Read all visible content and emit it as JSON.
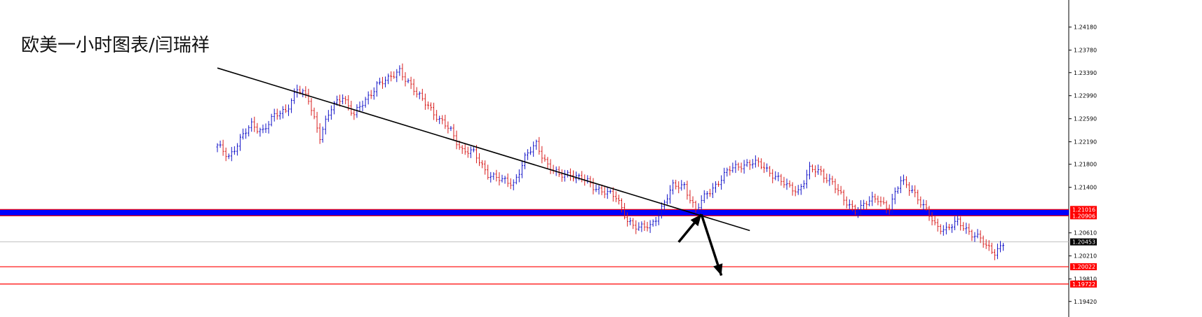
{
  "chart_data": {
    "type": "candlestick",
    "title": "欧美一小时图表/闫瑞祥",
    "ylim": [
      1.1915,
      1.2465
    ],
    "y_ticks": [
      "1.24180",
      "1.23780",
      "1.23390",
      "1.22990",
      "1.22590",
      "1.22190",
      "1.21800",
      "1.21400",
      "1.20610",
      "1.20210",
      "1.19810",
      "1.19420"
    ],
    "current_price": "1.20453",
    "levels": [
      {
        "label": "1.21016",
        "value": 1.21016,
        "color": "#ff0000"
      },
      {
        "label": "1.20906",
        "value": 1.20906,
        "color": "#ff0000"
      },
      {
        "label": "1.20022",
        "value": 1.20022,
        "color": "#ff0000"
      },
      {
        "label": "1.19722",
        "value": 1.19722,
        "color": "#ff0000"
      }
    ],
    "support_band": {
      "from": 1.20906,
      "to": 1.21016,
      "color": "#0000ff"
    },
    "trendline": {
      "points": [
        [
          0,
          1.2347
        ],
        [
          187,
          1.2065
        ]
      ],
      "color": "#000000"
    },
    "forecast_arrows": [
      {
        "from": [
          162,
          1.2045
        ],
        "to": [
          170,
          1.2093
        ]
      },
      {
        "from": [
          170,
          1.2093
        ],
        "to": [
          177,
          1.1987
        ]
      }
    ],
    "path": [
      [
        0,
        1.221
      ],
      [
        4,
        1.2195
      ],
      [
        8,
        1.2222
      ],
      [
        12,
        1.2248
      ],
      [
        16,
        1.224
      ],
      [
        20,
        1.2262
      ],
      [
        24,
        1.2275
      ],
      [
        28,
        1.231
      ],
      [
        32,
        1.2292
      ],
      [
        36,
        1.223
      ],
      [
        40,
        1.2275
      ],
      [
        44,
        1.23
      ],
      [
        48,
        1.2265
      ],
      [
        52,
        1.229
      ],
      [
        56,
        1.232
      ],
      [
        60,
        1.2325
      ],
      [
        64,
        1.2345
      ],
      [
        66,
        1.233
      ],
      [
        70,
        1.23
      ],
      [
        74,
        1.2285
      ],
      [
        78,
        1.2255
      ],
      [
        82,
        1.2238
      ],
      [
        86,
        1.2205
      ],
      [
        90,
        1.2198
      ],
      [
        95,
        1.2165
      ],
      [
        100,
        1.215
      ],
      [
        104,
        1.2148
      ],
      [
        108,
        1.219
      ],
      [
        112,
        1.2215
      ],
      [
        116,
        1.218
      ],
      [
        120,
        1.2158
      ],
      [
        124,
        1.2165
      ],
      [
        128,
        1.2155
      ],
      [
        132,
        1.214
      ],
      [
        136,
        1.2135
      ],
      [
        140,
        1.212
      ],
      [
        144,
        1.2085
      ],
      [
        148,
        1.2068
      ],
      [
        152,
        1.2072
      ],
      [
        156,
        1.2105
      ],
      [
        160,
        1.214
      ],
      [
        164,
        1.2145
      ],
      [
        168,
        1.2098
      ],
      [
        172,
        1.213
      ],
      [
        176,
        1.215
      ],
      [
        180,
        1.217
      ],
      [
        184,
        1.218
      ],
      [
        188,
        1.2182
      ],
      [
        192,
        1.2175
      ],
      [
        196,
        1.216
      ],
      [
        200,
        1.214
      ],
      [
        204,
        1.2135
      ],
      [
        208,
        1.217
      ],
      [
        212,
        1.2165
      ],
      [
        216,
        1.215
      ],
      [
        220,
        1.2115
      ],
      [
        224,
        1.2102
      ],
      [
        228,
        1.2112
      ],
      [
        232,
        1.212
      ],
      [
        236,
        1.2105
      ],
      [
        240,
        1.215
      ],
      [
        244,
        1.2138
      ],
      [
        248,
        1.2105
      ],
      [
        252,
        1.2075
      ],
      [
        256,
        1.2068
      ],
      [
        260,
        1.2078
      ],
      [
        264,
        1.2065
      ],
      [
        268,
        1.205
      ],
      [
        270,
        1.2035
      ],
      [
        273,
        1.2028
      ],
      [
        276,
        1.2045
      ]
    ]
  }
}
